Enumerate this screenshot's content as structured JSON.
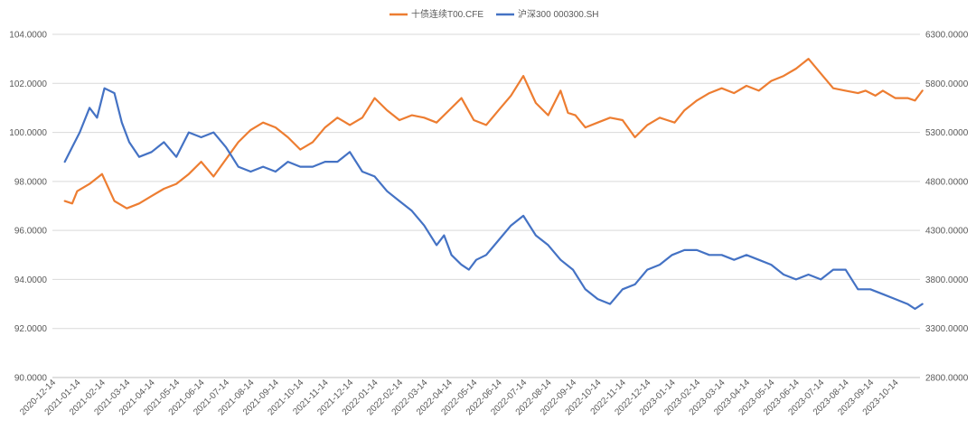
{
  "chart_data": {
    "type": "line",
    "title": "",
    "legend": {
      "position": "top-center",
      "entries": [
        {
          "name": "十债连续T00.CFE",
          "color": "#ED7D31",
          "axis": "left"
        },
        {
          "name": "沪深300 000300.SH",
          "color": "#4472C4",
          "axis": "right"
        }
      ]
    },
    "x_ticks": [
      "2020-12-14",
      "2021-01-14",
      "2021-02-14",
      "2021-03-14",
      "2021-04-14",
      "2021-05-14",
      "2021-06-14",
      "2021-07-14",
      "2021-08-14",
      "2021-09-14",
      "2021-10-14",
      "2021-11-14",
      "2021-12-14",
      "2022-01-14",
      "2022-02-14",
      "2022-03-14",
      "2022-04-14",
      "2022-05-14",
      "2022-06-14",
      "2022-07-14",
      "2022-08-14",
      "2022-09-14",
      "2022-10-14",
      "2022-11-14",
      "2022-12-14",
      "2023-01-14",
      "2023-02-14",
      "2023-03-14",
      "2023-04-14",
      "2023-05-14",
      "2023-06-14",
      "2023-07-14",
      "2023-08-14",
      "2023-09-14",
      "2023-10-14"
    ],
    "y_left": {
      "min": 90,
      "max": 104,
      "step": 2,
      "tick_labels": [
        "90.0000",
        "92.0000",
        "94.0000",
        "96.0000",
        "98.0000",
        "100.0000",
        "102.0000",
        "104.0000"
      ]
    },
    "y_right": {
      "min": 2800,
      "max": 6300,
      "step": 500,
      "tick_labels": [
        "2800.0000",
        "3300.0000",
        "3800.0000",
        "4300.0000",
        "4800.0000",
        "5300.0000",
        "5800.0000",
        "6300.0000"
      ]
    },
    "grid": "horizontal",
    "series": [
      {
        "name": "十债连续T00.CFE",
        "color": "#ED7D31",
        "axis": "left",
        "x_index": [
          0,
          0.3,
          0.5,
          1.0,
          1.5,
          2.0,
          2.5,
          3.0,
          3.5,
          4.0,
          4.5,
          5.0,
          5.5,
          6.0,
          6.5,
          7.0,
          7.5,
          8.0,
          8.5,
          9.0,
          9.5,
          10.0,
          10.5,
          11.0,
          11.5,
          12.0,
          12.5,
          13.0,
          13.5,
          14.0,
          14.5,
          15.0,
          15.5,
          16.0,
          16.5,
          17.0,
          17.5,
          18.0,
          18.5,
          19.0,
          19.5,
          20.0,
          20.3,
          20.6,
          21.0,
          21.5,
          22.0,
          22.5,
          23.0,
          23.5,
          24.0,
          24.3,
          24.6,
          25.0,
          25.5,
          26.0,
          26.5,
          27.0,
          27.5,
          28.0,
          28.5,
          29.0,
          29.5,
          30.0,
          30.5,
          31.0,
          31.5,
          32.0,
          32.3,
          32.7,
          33.0,
          33.5,
          34.0,
          34.3,
          34.6
        ],
        "values": [
          97.2,
          97.1,
          97.6,
          97.9,
          98.3,
          97.2,
          96.9,
          97.1,
          97.4,
          97.7,
          97.9,
          98.3,
          98.8,
          98.2,
          98.9,
          99.6,
          100.1,
          100.4,
          100.2,
          99.8,
          99.3,
          99.6,
          100.2,
          100.6,
          100.3,
          100.6,
          101.4,
          100.9,
          100.5,
          100.7,
          100.6,
          100.4,
          100.9,
          101.4,
          100.5,
          100.3,
          100.9,
          101.5,
          102.3,
          101.2,
          100.7,
          101.7,
          100.8,
          100.7,
          100.2,
          100.4,
          100.6,
          100.5,
          99.8,
          100.3,
          100.6,
          100.5,
          100.4,
          100.9,
          101.3,
          101.6,
          101.8,
          101.6,
          101.9,
          101.7,
          102.1,
          102.3,
          102.6,
          103.0,
          102.4,
          101.8,
          101.7,
          101.6,
          101.7,
          101.5,
          101.7,
          101.4,
          101.4,
          101.3,
          101.7
        ]
      },
      {
        "name": "沪深300 000300.SH",
        "color": "#4472C4",
        "axis": "right",
        "x_index": [
          0,
          0.3,
          0.6,
          1.0,
          1.3,
          1.6,
          2.0,
          2.3,
          2.6,
          3.0,
          3.5,
          4.0,
          4.5,
          5.0,
          5.5,
          6.0,
          6.5,
          7.0,
          7.5,
          8.0,
          8.5,
          9.0,
          9.5,
          10.0,
          10.5,
          11.0,
          11.5,
          12.0,
          12.5,
          13.0,
          13.5,
          14.0,
          14.5,
          15.0,
          15.3,
          15.6,
          16.0,
          16.3,
          16.6,
          17.0,
          17.5,
          18.0,
          18.5,
          19.0,
          19.5,
          20.0,
          20.5,
          21.0,
          21.5,
          22.0,
          22.5,
          23.0,
          23.5,
          24.0,
          24.5,
          25.0,
          25.5,
          26.0,
          26.5,
          27.0,
          27.5,
          28.0,
          28.5,
          29.0,
          29.5,
          30.0,
          30.5,
          31.0,
          31.5,
          32.0,
          32.5,
          33.0,
          33.5,
          34.0,
          34.3,
          34.6
        ],
        "values": [
          5000,
          5150,
          5300,
          5550,
          5450,
          5750,
          5700,
          5400,
          5200,
          5050,
          5100,
          5200,
          5050,
          5300,
          5250,
          5300,
          5150,
          4950,
          4900,
          4950,
          4900,
          5000,
          4950,
          4950,
          5000,
          5000,
          5100,
          4900,
          4850,
          4700,
          4600,
          4500,
          4350,
          4150,
          4250,
          4050,
          3950,
          3900,
          4000,
          4050,
          4200,
          4350,
          4450,
          4250,
          4150,
          4000,
          3900,
          3700,
          3600,
          3550,
          3700,
          3750,
          3900,
          3950,
          4050,
          4100,
          4100,
          4050,
          4050,
          4000,
          4050,
          4000,
          3950,
          3850,
          3800,
          3850,
          3800,
          3900,
          3900,
          3700,
          3700,
          3650,
          3600,
          3550,
          3500,
          3550
        ]
      }
    ]
  }
}
